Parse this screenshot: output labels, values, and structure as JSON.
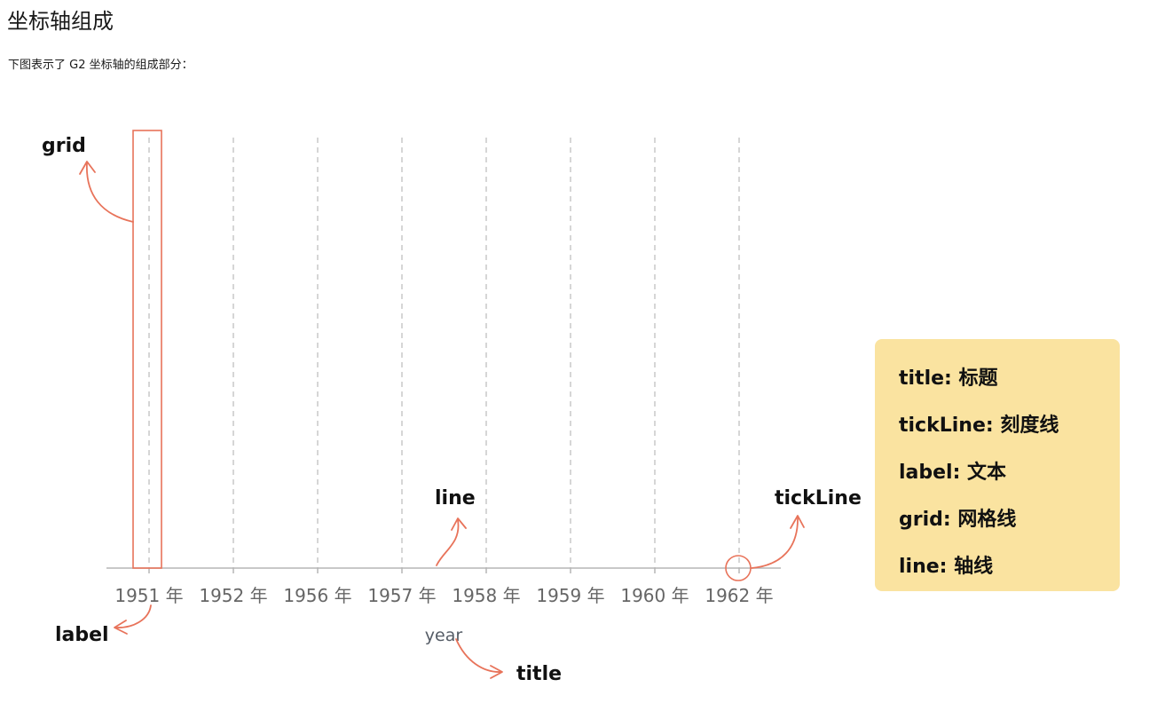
{
  "page": {
    "title": "坐标轴组成",
    "description": "下图表示了 G2 坐标轴的组成部分："
  },
  "axis": {
    "title": "year",
    "ticks": [
      "1951 年",
      "1952 年",
      "1956 年",
      "1957 年",
      "1958 年",
      "1959 年",
      "1960 年",
      "1962 年"
    ]
  },
  "annotations": {
    "grid": "grid",
    "line": "line",
    "tickLine": "tickLine",
    "label": "label",
    "title": "title"
  },
  "legend": {
    "items": [
      "title: 标题",
      "tickLine: 刻度线",
      "label: 文本",
      "grid: 网格线",
      "line: 轴线"
    ]
  },
  "colors": {
    "accent": "#e8735a",
    "grid": "#c8c8c8",
    "axis": "#b5b5b5",
    "legend_bg": "#fae3a0"
  }
}
